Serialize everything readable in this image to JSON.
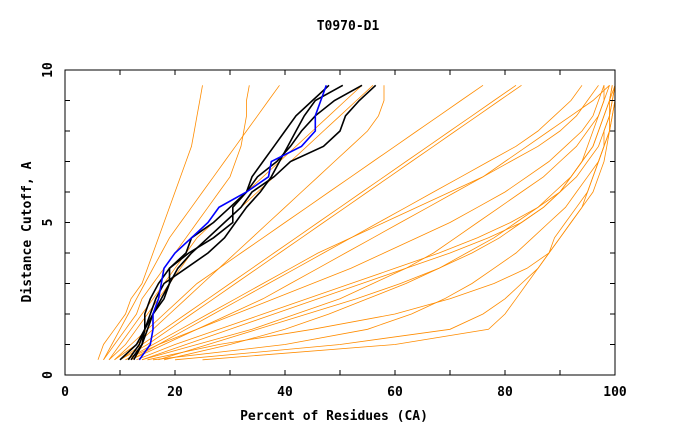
{
  "chart_data": {
    "type": "line",
    "title": "T0970-D1",
    "xlabel": "Percent of Residues (CA)",
    "ylabel": "Distance Cutoff, A",
    "xlim": [
      0,
      100
    ],
    "ylim": [
      0,
      10
    ],
    "x_ticks": [
      "0",
      "20",
      "40",
      "60",
      "80",
      "100"
    ],
    "y_ticks": [
      "0",
      "5",
      "10"
    ],
    "y": [
      0.5,
      1,
      1.5,
      2,
      2.5,
      3,
      3.5,
      4,
      4.5,
      5,
      5.5,
      6,
      6.5,
      7,
      7.5,
      8,
      8.5,
      9,
      9.5
    ],
    "colors": {
      "other": "#ff8c00",
      "highlight": "#0000ff",
      "top": "#000000"
    },
    "series_other": [
      [
        6,
        7,
        9,
        11,
        12,
        14,
        15,
        16,
        17,
        18,
        19,
        20,
        21,
        22,
        23,
        23.5,
        24,
        24.5,
        25
      ],
      [
        7,
        9,
        11,
        13,
        14,
        16,
        18,
        20,
        22,
        24,
        26,
        28,
        30,
        31,
        32,
        32.5,
        33,
        33,
        33.5
      ],
      [
        8,
        11,
        13,
        15,
        17,
        19,
        21,
        23,
        26,
        29,
        32,
        35,
        38,
        41,
        44,
        47,
        50,
        53,
        56
      ],
      [
        9,
        13,
        16,
        19,
        22,
        25,
        28,
        31,
        34,
        37,
        40,
        43,
        46,
        49,
        52,
        55,
        57,
        58,
        58
      ],
      [
        10,
        15,
        19,
        23,
        27,
        31,
        35,
        39,
        43,
        47,
        51,
        55,
        59,
        63,
        67,
        71,
        75,
        79,
        83
      ],
      [
        12,
        18,
        24,
        30,
        36,
        41,
        46,
        51,
        56,
        61,
        66,
        71,
        76,
        80,
        84,
        88,
        92,
        96,
        99
      ],
      [
        14,
        24,
        34,
        42,
        50,
        56,
        62,
        67,
        71,
        75,
        79,
        83,
        87,
        90,
        93,
        95,
        97,
        98,
        99
      ],
      [
        16,
        40,
        55,
        63,
        69,
        74,
        78,
        82,
        85,
        88,
        91,
        93,
        95,
        97,
        98,
        99,
        99.5,
        100,
        100
      ],
      [
        20,
        50,
        70,
        76,
        80,
        83,
        86,
        88,
        90,
        92,
        94,
        95,
        96,
        97,
        98,
        99,
        99,
        99.5,
        100
      ],
      [
        25,
        60,
        77,
        80,
        82,
        84,
        86,
        88,
        89,
        91,
        93,
        95,
        96,
        97,
        98,
        98,
        99,
        99,
        99.5
      ],
      [
        18,
        30,
        40,
        48,
        55,
        62,
        68,
        73,
        78,
        82,
        86,
        89,
        92,
        94,
        96,
        97,
        98,
        99,
        99.5
      ],
      [
        11,
        16,
        21,
        26,
        31,
        36,
        41,
        46,
        52,
        58,
        64,
        70,
        76,
        81,
        86,
        90,
        93,
        95,
        97
      ],
      [
        13,
        20,
        28,
        36,
        44,
        52,
        60,
        68,
        75,
        81,
        86,
        90,
        93,
        95,
        97,
        98,
        99,
        99.5,
        100
      ],
      [
        9,
        12,
        15,
        18,
        21,
        24,
        28,
        32,
        36,
        40,
        44,
        48,
        52,
        56,
        60,
        64,
        68,
        72,
        76
      ],
      [
        15,
        28,
        45,
        60,
        70,
        78,
        84,
        88,
        90,
        92,
        94,
        96,
        97,
        98,
        98.5,
        99,
        99.5,
        100,
        100
      ],
      [
        12,
        17,
        22,
        27,
        32,
        37,
        42,
        47,
        52,
        57,
        62,
        67,
        72,
        77,
        82,
        86,
        89,
        92,
        94
      ],
      [
        8,
        10,
        12,
        14,
        16,
        18,
        20,
        22,
        24,
        27,
        30,
        33,
        36,
        39,
        42,
        45,
        48,
        51,
        54
      ],
      [
        10,
        14,
        18,
        22,
        26,
        30,
        34,
        38,
        42,
        46,
        50,
        54,
        58,
        62,
        66,
        70,
        74,
        78,
        82
      ],
      [
        17,
        26,
        35,
        44,
        53,
        61,
        68,
        74,
        79,
        83,
        87,
        90,
        92,
        94,
        96,
        97,
        98,
        99,
        100
      ],
      [
        14,
        22,
        30,
        38,
        46,
        54,
        62,
        70,
        77,
        83,
        87,
        90,
        92,
        94,
        95,
        96,
        97,
        98,
        98
      ],
      [
        7,
        8.5,
        10,
        11.5,
        13,
        14.5,
        16,
        17.5,
        19,
        21,
        23,
        25,
        27,
        29,
        31,
        33,
        35,
        37,
        39
      ],
      [
        11,
        17,
        24,
        31,
        38,
        45,
        52,
        58,
        64,
        70,
        75,
        80,
        84,
        88,
        91,
        94,
        96,
        97,
        98
      ]
    ],
    "series_highlight": [
      [
        13.5,
        15.5,
        16,
        16,
        17,
        17.5,
        18,
        20,
        23,
        26,
        28,
        33,
        37,
        37.5,
        43,
        45.5,
        45.5,
        46.5,
        47.5
      ]
    ],
    "series_top": [
      [
        10,
        13,
        14.5,
        14.5,
        15.5,
        17,
        19,
        22,
        23,
        27,
        30,
        33,
        34,
        36,
        38,
        40,
        42,
        45,
        48
      ],
      [
        11.5,
        13.5,
        14.5,
        15.5,
        16.5,
        18,
        22,
        26,
        29,
        31,
        33,
        35.5,
        37.5,
        39,
        40.5,
        42,
        43.5,
        45.5,
        50.5
      ],
      [
        12.5,
        14,
        14.5,
        16,
        18,
        19,
        19,
        22.5,
        27,
        30.5,
        30.5,
        33,
        35,
        38.5,
        41,
        43,
        45.5,
        49,
        54
      ],
      [
        12,
        14,
        15,
        16,
        17.5,
        19,
        20.5,
        23,
        26,
        29,
        32,
        34,
        38,
        41,
        47,
        50,
        51,
        53.5,
        56.5
      ]
    ]
  }
}
